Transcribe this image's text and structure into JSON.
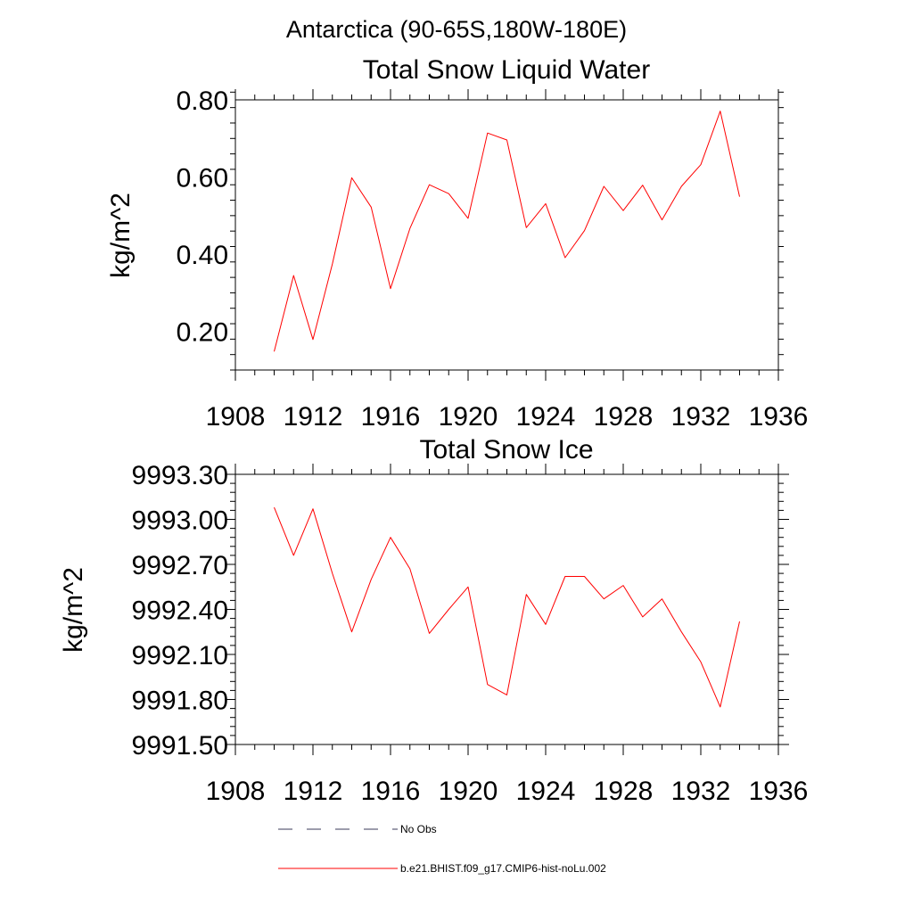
{
  "figure": {
    "suptitle": "Antarctica (90-65S,180W-180E)"
  },
  "chart_data": [
    {
      "type": "line",
      "title": "Total Snow Liquid Water",
      "xlabel": "",
      "ylabel": "kg/m^2",
      "xlim": [
        1908,
        1936
      ],
      "ylim": [
        0.1,
        0.8
      ],
      "xticks": [
        "1908",
        "1912",
        "1916",
        "1920",
        "1924",
        "1928",
        "1932",
        "1936"
      ],
      "yticks": [
        "0.20",
        "0.40",
        "0.60",
        "0.80"
      ],
      "grid": false,
      "x": [
        1910,
        1911,
        1912,
        1913,
        1914,
        1915,
        1916,
        1917,
        1918,
        1919,
        1920,
        1921,
        1922,
        1923,
        1924,
        1925,
        1926,
        1927,
        1928,
        1929,
        1930,
        1931,
        1932,
        1933,
        1934
      ],
      "series": [
        {
          "name": "b.e21.BHIST.f09_g17.CMIP6-hist-noLu.002",
          "color": "#ff0000",
          "values": [
            0.148,
            0.345,
            0.179,
            0.375,
            0.598,
            0.522,
            0.311,
            0.467,
            0.58,
            0.557,
            0.493,
            0.714,
            0.696,
            0.469,
            0.531,
            0.391,
            0.461,
            0.576,
            0.513,
            0.579,
            0.489,
            0.576,
            0.632,
            0.771,
            0.549
          ]
        }
      ]
    },
    {
      "type": "line",
      "title": "Total Snow Ice",
      "xlabel": "",
      "ylabel": "kg/m^2",
      "xlim": [
        1908,
        1936
      ],
      "ylim": [
        9991.5,
        9993.3
      ],
      "xticks": [
        "1908",
        "1912",
        "1916",
        "1920",
        "1924",
        "1928",
        "1932",
        "1936"
      ],
      "yticks": [
        "9991.50",
        "9991.80",
        "9992.10",
        "9992.40",
        "9992.70",
        "9993.00",
        "9993.30"
      ],
      "grid": false,
      "x": [
        1910,
        1911,
        1912,
        1913,
        1914,
        1915,
        1916,
        1917,
        1918,
        1919,
        1920,
        1921,
        1922,
        1923,
        1924,
        1925,
        1926,
        1927,
        1928,
        1929,
        1930,
        1931,
        1932,
        1933,
        1934
      ],
      "series": [
        {
          "name": "b.e21.BHIST.f09_g17.CMIP6-hist-noLu.002",
          "color": "#ff0000",
          "values": [
            9993.08,
            9992.76,
            9993.07,
            9992.64,
            9992.25,
            9992.6,
            9992.88,
            9992.67,
            9992.24,
            9992.4,
            9992.55,
            9991.9,
            9991.83,
            9992.5,
            9992.3,
            9992.62,
            9992.62,
            9992.47,
            9992.56,
            9992.35,
            9992.47,
            9992.25,
            9992.05,
            9991.75,
            9992.32
          ]
        }
      ]
    }
  ],
  "legend": {
    "placement": "bottom",
    "items": [
      {
        "label": "No Obs",
        "style": "dashed",
        "color": "#3a3a5a"
      },
      {
        "label": "b.e21.BHIST.f09_g17.CMIP6-hist-noLu.002",
        "style": "solid",
        "color": "#ff0000"
      }
    ]
  }
}
